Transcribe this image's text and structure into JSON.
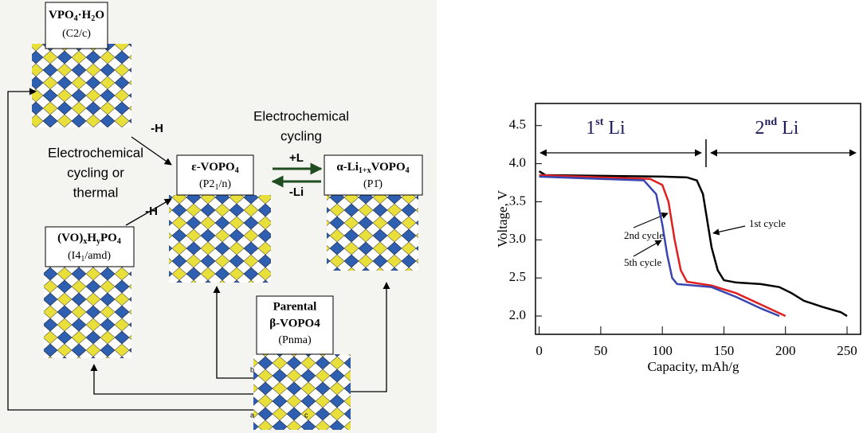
{
  "diagram": {
    "nodes": [
      {
        "lines": [
          [
            "VPO",
            "4",
            "·H",
            "2",
            "O"
          ],
          [
            "(C2/c)"
          ]
        ]
      },
      {
        "lines": [
          [
            "ε-VOPO",
            "4"
          ],
          [
            "(P2",
            "1",
            "/n)"
          ]
        ]
      },
      {
        "lines": [
          [
            "α-Li",
            "1+x",
            "VOPO",
            "4"
          ],
          [
            "(P1̄)"
          ]
        ]
      },
      {
        "lines": [
          [
            "(VO)",
            "x",
            "H",
            "y",
            "PO",
            "4"
          ],
          [
            "(I4",
            "1",
            "/amd)"
          ]
        ]
      },
      {
        "lines": [
          [
            "Parental"
          ],
          [
            "β-VOPO4"
          ],
          [
            "(Pnma)"
          ]
        ]
      }
    ],
    "reactions": [
      "-H",
      "-H",
      "+L",
      "-Li"
    ],
    "notes": [
      [
        "Electrochemical",
        "cycling or",
        "thermal"
      ],
      [
        "Electrochemical",
        "cycling"
      ]
    ],
    "axes": [
      "b",
      "a",
      "c"
    ]
  },
  "chart_data": {
    "type": "line",
    "x_label": "Capacity, mAh/g",
    "y_label": "Voltage, V",
    "xlim": [
      -3,
      261
    ],
    "ylim": [
      1.76,
      4.79
    ],
    "xticks": [
      0,
      50,
      100,
      150,
      200,
      250
    ],
    "yticks": [
      {
        "value": 2,
        "label": "2.0"
      },
      {
        "value": 2.5,
        "label": "2.5"
      },
      {
        "value": 3,
        "label": "3.0"
      },
      {
        "value": 3.5,
        "label": "3.5"
      },
      {
        "value": 4,
        "label": "4.0"
      },
      {
        "value": 4.5,
        "label": "4.5"
      }
    ],
    "series": [
      {
        "name": "1st cycle",
        "color": "#000000",
        "x": [
          0,
          5,
          50,
          100,
          120,
          128,
          133,
          137,
          140,
          145,
          150,
          160,
          180,
          195,
          205,
          215,
          230,
          245,
          250
        ],
        "values": [
          3.9,
          3.85,
          3.84,
          3.83,
          3.82,
          3.78,
          3.6,
          3.2,
          2.9,
          2.6,
          2.47,
          2.44,
          2.42,
          2.38,
          2.3,
          2.2,
          2.12,
          2.05,
          2.0
        ]
      },
      {
        "name": "2nd cycle",
        "color": "#e02020",
        "x": [
          0,
          50,
          90,
          100,
          105,
          110,
          115,
          120,
          140,
          160,
          180,
          200
        ],
        "values": [
          3.85,
          3.82,
          3.8,
          3.72,
          3.5,
          3.0,
          2.6,
          2.45,
          2.4,
          2.3,
          2.15,
          2.0
        ]
      },
      {
        "name": "5th cycle",
        "color": "#3a46b0",
        "x": [
          0,
          50,
          85,
          95,
          100,
          104,
          108,
          112,
          140,
          160,
          180,
          195
        ],
        "values": [
          3.83,
          3.8,
          3.78,
          3.6,
          3.2,
          2.8,
          2.5,
          2.42,
          2.38,
          2.25,
          2.1,
          2.0
        ]
      }
    ],
    "annotations": [
      [
        "1",
        "st",
        " Li"
      ],
      [
        "2",
        "nd",
        " Li"
      ]
    ]
  }
}
